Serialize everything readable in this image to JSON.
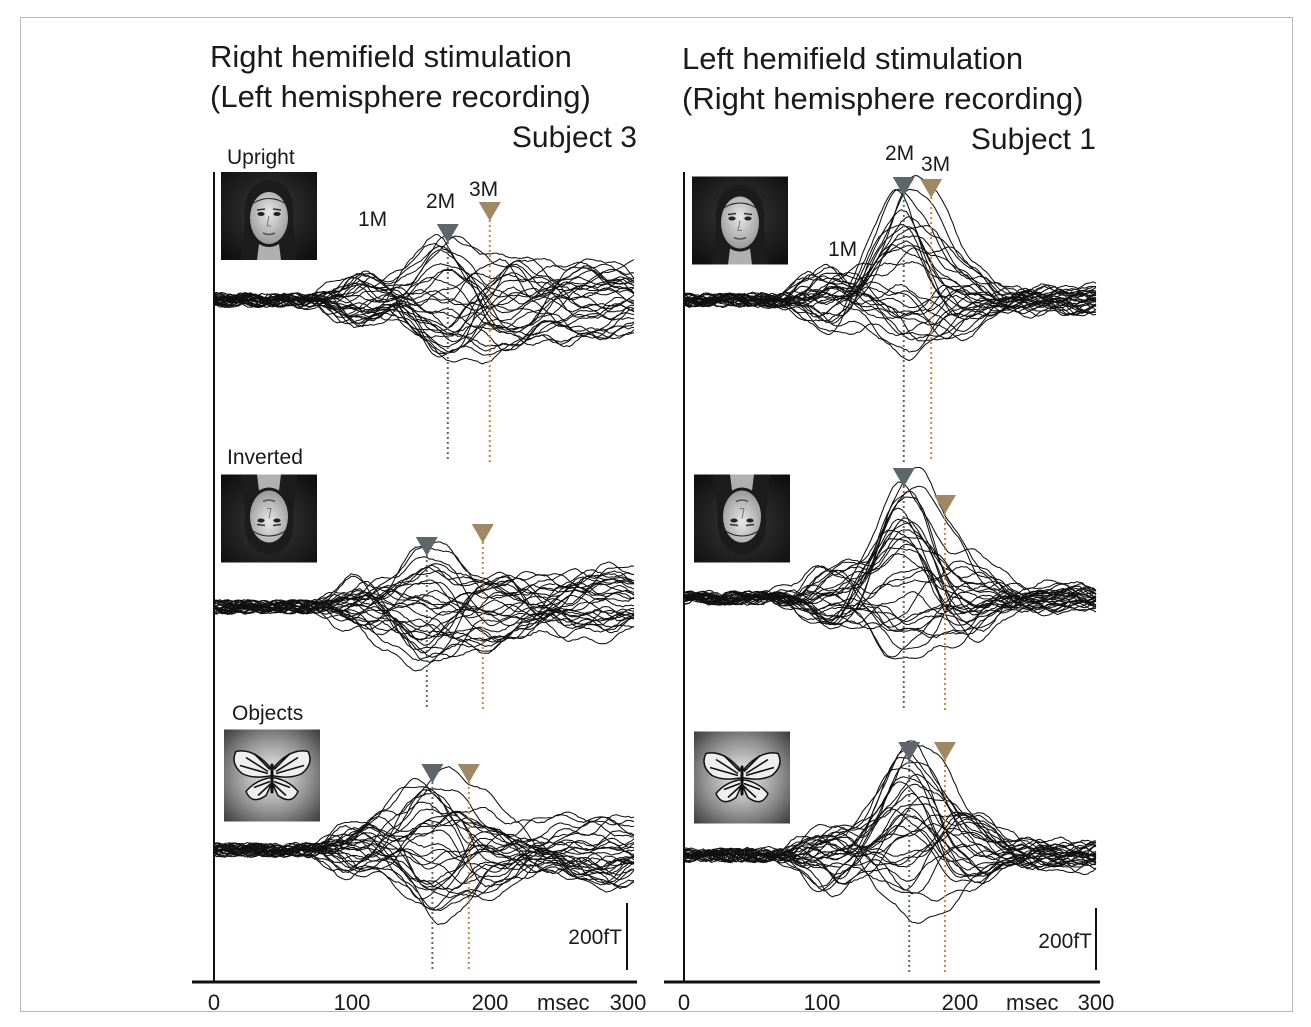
{
  "colors": {
    "marker2M": "#5d666b",
    "marker3M": "#a08864",
    "line2M": "#5a6a70",
    "line3M": "#c08a40",
    "trace": "#111111"
  },
  "icons": {
    "upright_face": "face-photo-icon",
    "inverted_face": "inverted-face-photo-icon",
    "object": "butterfly-photo-icon"
  },
  "panels": [
    {
      "title_line1": "Right hemifield stimulation",
      "title_line2": "(Left hemisphere recording)",
      "subject": "Subject 3",
      "conditions": [
        {
          "label": "Upright",
          "peak_labels": {
            "m1": "1M",
            "m2": "2M",
            "m3": "3M"
          },
          "t2": 167,
          "t3": 197,
          "t1": 100
        },
        {
          "label": "Inverted",
          "t2": 152,
          "t3": 192
        },
        {
          "label": "Objects",
          "t2": 156,
          "t3": 182
        }
      ],
      "scale_bar": "200fT",
      "x_axis": {
        "ticks": [
          "0",
          "100",
          "200",
          "300"
        ],
        "unit": "msec",
        "range": [
          0,
          300
        ]
      }
    },
    {
      "title_line1": "Left hemifield stimulation",
      "title_line2": "(Right hemisphere recording)",
      "subject": "Subject 1",
      "conditions": [
        {
          "label": "",
          "peak_labels": {
            "m1": "1M",
            "m2": "2M",
            "m3": "3M"
          },
          "t2": 160,
          "t3": 180,
          "t1": 118
        },
        {
          "label": "",
          "t2": 160,
          "t3": 190
        },
        {
          "label": "",
          "t2": 164,
          "t3": 190
        }
      ],
      "scale_bar": "200fT",
      "x_axis": {
        "ticks": [
          "0",
          "100",
          "200",
          "300"
        ],
        "unit": "msec",
        "range": [
          0,
          300
        ]
      }
    }
  ]
}
